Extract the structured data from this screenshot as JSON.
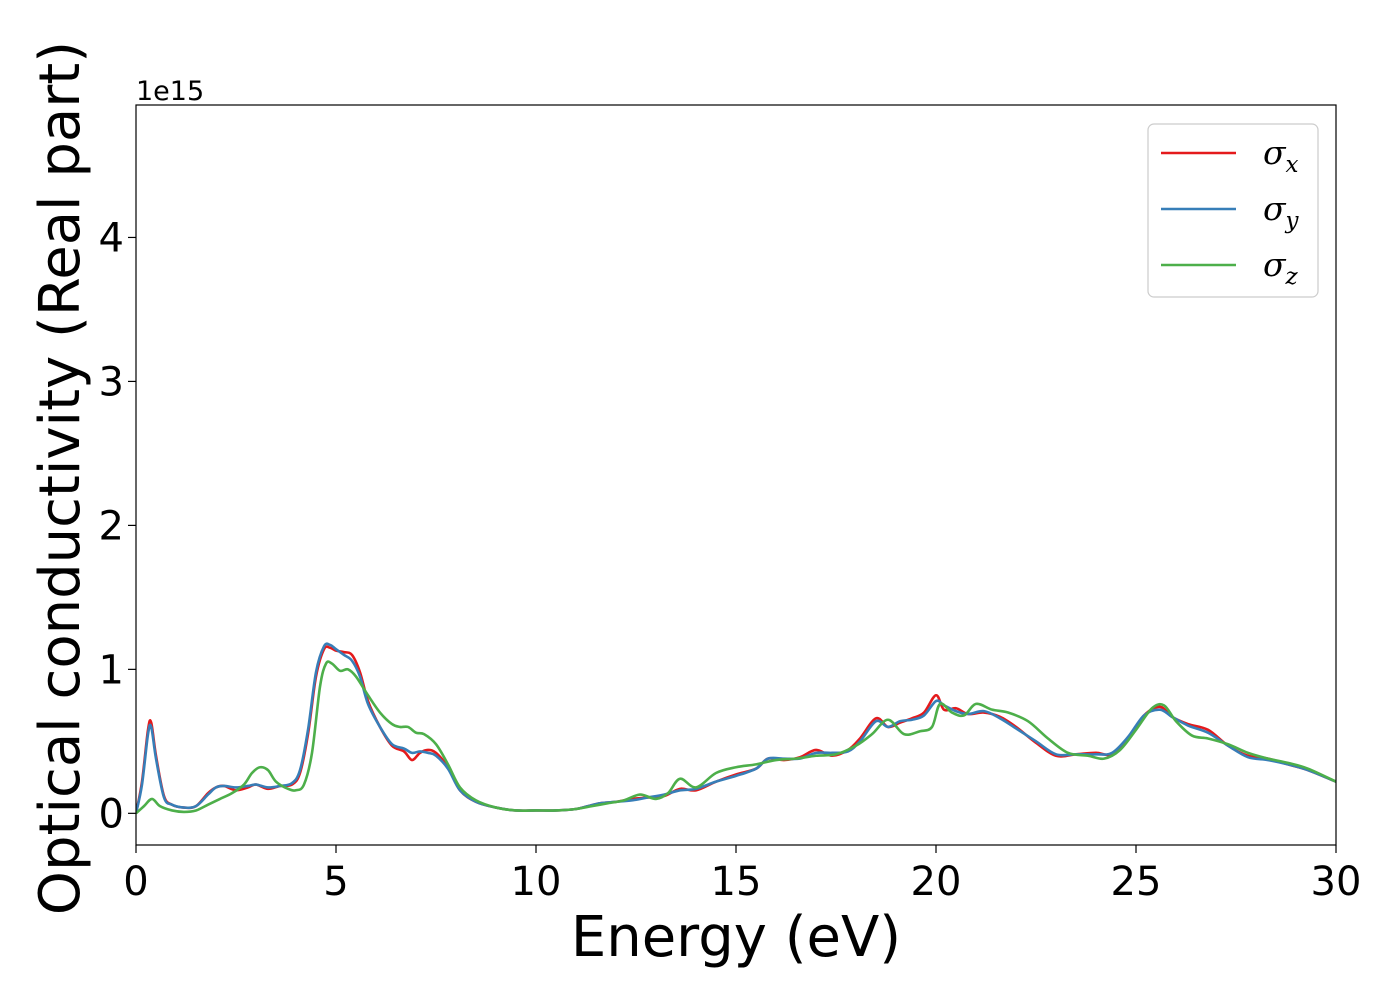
{
  "chart_data": {
    "type": "line",
    "title": "",
    "xlabel": "Energy (eV)",
    "ylabel": "Optical conductivity (Real part)",
    "y_offset_label": "1e15",
    "xlim": [
      0,
      30
    ],
    "ylim": [
      -0.22,
      4.92
    ],
    "xticks": [
      0,
      5,
      10,
      15,
      20,
      25,
      30
    ],
    "yticks": [
      0,
      1,
      2,
      3,
      4
    ],
    "grid": false,
    "legend_position": "top-right",
    "series": [
      {
        "name": "σx",
        "symbol": "σ",
        "subscript": "x",
        "color": "#e41a1c",
        "x": [
          0,
          0.15,
          0.3,
          0.38,
          0.5,
          0.7,
          0.9,
          1.2,
          1.5,
          1.8,
          2.0,
          2.2,
          2.5,
          2.8,
          3.0,
          3.3,
          3.6,
          3.9,
          4.1,
          4.3,
          4.5,
          4.7,
          4.85,
          5.0,
          5.2,
          5.4,
          5.6,
          5.8,
          6.1,
          6.4,
          6.7,
          6.9,
          7.1,
          7.3,
          7.5,
          7.8,
          8.1,
          8.5,
          9.0,
          9.5,
          10.0,
          10.5,
          11.0,
          11.3,
          11.6,
          12.0,
          12.4,
          12.8,
          13.2,
          13.6,
          14.0,
          14.5,
          15.0,
          15.5,
          15.8,
          16.2,
          16.6,
          17.0,
          17.4,
          17.8,
          18.1,
          18.5,
          18.8,
          19.1,
          19.4,
          19.7,
          20.0,
          20.2,
          20.5,
          20.8,
          21.2,
          21.6,
          22.0,
          22.5,
          23.0,
          23.5,
          24.0,
          24.4,
          24.8,
          25.2,
          25.6,
          25.9,
          26.3,
          26.8,
          27.3,
          27.8,
          28.3,
          28.8,
          29.3,
          30.0
        ],
        "values": [
          0.0,
          0.22,
          0.58,
          0.63,
          0.4,
          0.12,
          0.06,
          0.04,
          0.05,
          0.14,
          0.18,
          0.19,
          0.16,
          0.18,
          0.2,
          0.17,
          0.19,
          0.2,
          0.28,
          0.55,
          0.95,
          1.14,
          1.15,
          1.13,
          1.12,
          1.1,
          0.98,
          0.78,
          0.6,
          0.47,
          0.43,
          0.37,
          0.42,
          0.44,
          0.42,
          0.32,
          0.16,
          0.08,
          0.04,
          0.02,
          0.02,
          0.02,
          0.03,
          0.05,
          0.07,
          0.08,
          0.1,
          0.11,
          0.12,
          0.17,
          0.16,
          0.22,
          0.27,
          0.31,
          0.38,
          0.37,
          0.39,
          0.44,
          0.4,
          0.44,
          0.52,
          0.66,
          0.6,
          0.63,
          0.66,
          0.7,
          0.82,
          0.72,
          0.73,
          0.69,
          0.7,
          0.67,
          0.6,
          0.49,
          0.4,
          0.41,
          0.42,
          0.41,
          0.52,
          0.68,
          0.74,
          0.67,
          0.62,
          0.58,
          0.47,
          0.4,
          0.38,
          0.34,
          0.3,
          0.22
        ]
      },
      {
        "name": "σy",
        "symbol": "σ",
        "subscript": "y",
        "color": "#377eb8",
        "x": [
          0,
          0.15,
          0.3,
          0.38,
          0.5,
          0.7,
          0.9,
          1.2,
          1.5,
          1.8,
          2.0,
          2.2,
          2.5,
          2.8,
          3.0,
          3.3,
          3.6,
          3.9,
          4.1,
          4.3,
          4.5,
          4.7,
          4.85,
          5.0,
          5.2,
          5.4,
          5.6,
          5.8,
          6.1,
          6.4,
          6.7,
          6.9,
          7.1,
          7.3,
          7.5,
          7.8,
          8.1,
          8.5,
          9.0,
          9.5,
          10.0,
          10.5,
          11.0,
          11.3,
          11.6,
          12.0,
          12.4,
          12.8,
          13.2,
          13.6,
          14.0,
          14.5,
          15.0,
          15.5,
          15.8,
          16.2,
          16.6,
          17.0,
          17.4,
          17.8,
          18.1,
          18.5,
          18.8,
          19.1,
          19.4,
          19.7,
          20.0,
          20.2,
          20.5,
          20.8,
          21.2,
          21.6,
          22.0,
          22.5,
          23.0,
          23.5,
          24.0,
          24.4,
          24.8,
          25.2,
          25.6,
          25.9,
          26.3,
          26.8,
          27.3,
          27.8,
          28.3,
          28.8,
          29.3,
          30.0
        ],
        "values": [
          0.0,
          0.2,
          0.55,
          0.6,
          0.38,
          0.11,
          0.06,
          0.04,
          0.05,
          0.13,
          0.18,
          0.19,
          0.18,
          0.19,
          0.2,
          0.18,
          0.19,
          0.21,
          0.3,
          0.58,
          0.98,
          1.16,
          1.17,
          1.14,
          1.1,
          1.06,
          0.95,
          0.76,
          0.6,
          0.48,
          0.45,
          0.42,
          0.43,
          0.42,
          0.4,
          0.31,
          0.16,
          0.08,
          0.04,
          0.02,
          0.02,
          0.02,
          0.03,
          0.05,
          0.07,
          0.08,
          0.09,
          0.11,
          0.13,
          0.16,
          0.17,
          0.22,
          0.26,
          0.31,
          0.38,
          0.38,
          0.38,
          0.42,
          0.42,
          0.43,
          0.5,
          0.64,
          0.6,
          0.64,
          0.65,
          0.68,
          0.78,
          0.75,
          0.71,
          0.69,
          0.71,
          0.66,
          0.59,
          0.5,
          0.41,
          0.41,
          0.41,
          0.42,
          0.53,
          0.68,
          0.72,
          0.67,
          0.61,
          0.56,
          0.47,
          0.39,
          0.37,
          0.34,
          0.3,
          0.22
        ]
      },
      {
        "name": "σz",
        "symbol": "σ",
        "subscript": "z",
        "color": "#4daf4a",
        "x": [
          0,
          0.2,
          0.4,
          0.6,
          0.9,
          1.2,
          1.5,
          1.8,
          2.1,
          2.4,
          2.7,
          2.9,
          3.1,
          3.3,
          3.5,
          3.8,
          4.0,
          4.2,
          4.4,
          4.6,
          4.75,
          4.9,
          5.1,
          5.3,
          5.5,
          5.8,
          6.1,
          6.4,
          6.6,
          6.8,
          7.0,
          7.2,
          7.5,
          7.8,
          8.1,
          8.5,
          9.0,
          9.5,
          10.0,
          10.5,
          11.0,
          11.4,
          11.8,
          12.2,
          12.6,
          13.0,
          13.3,
          13.6,
          14.0,
          14.5,
          15.0,
          15.5,
          16.0,
          16.5,
          17.0,
          17.5,
          18.0,
          18.4,
          18.8,
          19.2,
          19.6,
          19.9,
          20.1,
          20.4,
          20.7,
          21.0,
          21.4,
          21.8,
          22.3,
          22.8,
          23.3,
          23.8,
          24.2,
          24.6,
          25.0,
          25.4,
          25.7,
          26.0,
          26.4,
          26.8,
          27.3,
          27.8,
          28.3,
          28.8,
          29.3,
          30.0
        ],
        "values": [
          0.0,
          0.05,
          0.1,
          0.05,
          0.02,
          0.01,
          0.02,
          0.06,
          0.1,
          0.14,
          0.2,
          0.28,
          0.32,
          0.3,
          0.22,
          0.17,
          0.16,
          0.2,
          0.42,
          0.88,
          1.04,
          1.04,
          0.99,
          1.0,
          0.95,
          0.82,
          0.7,
          0.62,
          0.6,
          0.6,
          0.56,
          0.55,
          0.48,
          0.34,
          0.18,
          0.09,
          0.04,
          0.02,
          0.02,
          0.02,
          0.03,
          0.05,
          0.07,
          0.09,
          0.13,
          0.1,
          0.14,
          0.24,
          0.18,
          0.28,
          0.32,
          0.34,
          0.37,
          0.38,
          0.4,
          0.41,
          0.47,
          0.55,
          0.65,
          0.55,
          0.57,
          0.6,
          0.76,
          0.7,
          0.68,
          0.76,
          0.72,
          0.7,
          0.64,
          0.52,
          0.42,
          0.4,
          0.38,
          0.44,
          0.58,
          0.73,
          0.75,
          0.64,
          0.54,
          0.52,
          0.48,
          0.42,
          0.38,
          0.35,
          0.31,
          0.22
        ]
      }
    ]
  }
}
